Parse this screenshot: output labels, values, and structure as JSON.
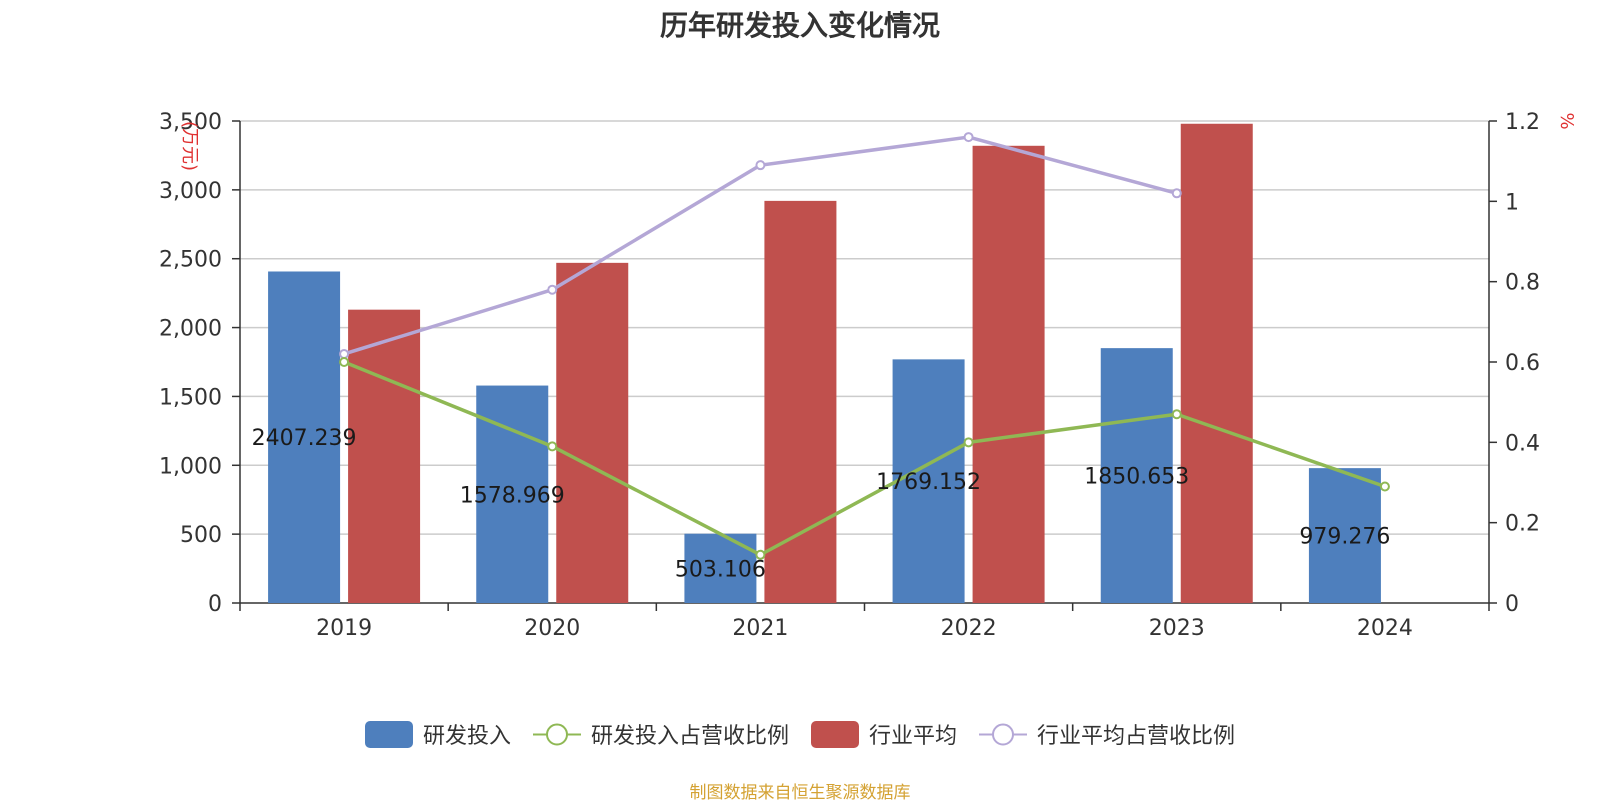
{
  "title": "历年研发投入变化情况",
  "source": "制图数据来自恒生聚源数据库",
  "colors": {
    "rd": "#4e7fbd",
    "rd_ratio": "#8fb854",
    "industry": "#c0504d",
    "industry_ratio": "#b4a7d6",
    "axis_unit": "#e03131",
    "grid": "#cccccc",
    "text": "#333333"
  },
  "chart_data": {
    "type": "bar",
    "title": "历年研发投入变化情况",
    "categories": [
      "2019",
      "2020",
      "2021",
      "2022",
      "2023",
      "2024"
    ],
    "y_left": {
      "label": "(万元)",
      "lim": [
        0,
        3500
      ],
      "ticks": [
        "0",
        "500",
        "1,000",
        "1,500",
        "2,000",
        "2,500",
        "3,000",
        "3,500"
      ]
    },
    "y_right": {
      "label": "%",
      "lim": [
        0,
        1.2
      ],
      "ticks": [
        "0",
        "0.2",
        "0.4",
        "0.6",
        "0.8",
        "1",
        "1.2"
      ]
    },
    "grid": true,
    "legend_position": "bottom",
    "series": [
      {
        "name": "研发投入",
        "type": "bar",
        "axis": "left",
        "values": [
          2407.239,
          1578.969,
          503.106,
          1769.152,
          1850.653,
          979.276
        ],
        "labels": [
          "2407.239",
          "1578.969",
          "503.106",
          "1769.152",
          "1850.653",
          "979.276"
        ]
      },
      {
        "name": "研发投入占营收比例",
        "type": "line",
        "axis": "right",
        "values": [
          0.6,
          0.39,
          0.12,
          0.4,
          0.47,
          0.29
        ]
      },
      {
        "name": "行业平均",
        "type": "bar",
        "axis": "left",
        "values": [
          2130,
          2470,
          2920,
          3320,
          3480,
          null
        ]
      },
      {
        "name": "行业平均占营收比例",
        "type": "line",
        "axis": "right",
        "values": [
          0.62,
          0.78,
          1.09,
          1.16,
          1.02,
          null
        ]
      }
    ]
  }
}
